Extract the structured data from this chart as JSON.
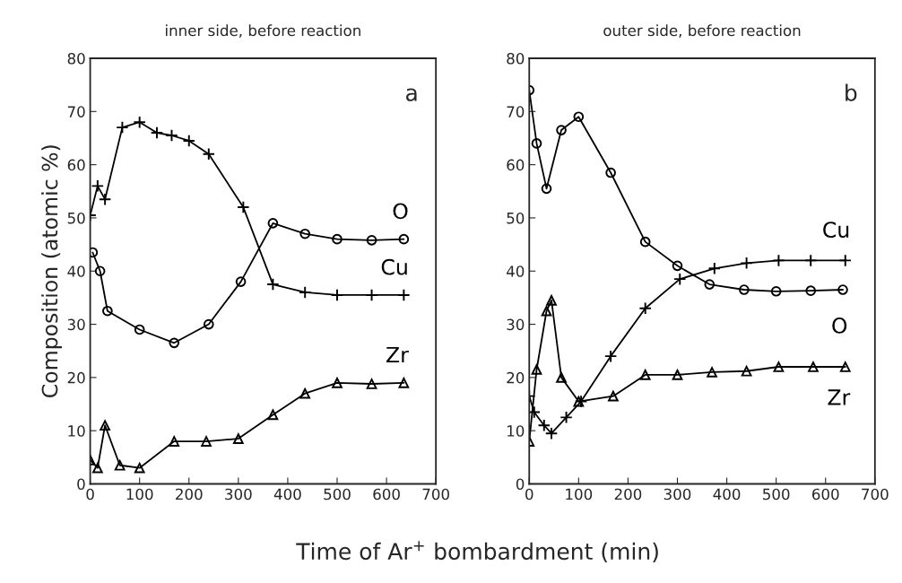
{
  "chart_data": [
    {
      "type": "line",
      "title": "inner side, before reaction",
      "xlabel": "Time of Ar$^{+}$ bombardment (min)",
      "ylabel": "Composition (atomic %)",
      "annotations": [
        "a"
      ],
      "xlim": [
        0,
        700
      ],
      "ylim": [
        0,
        80
      ],
      "xticks": [
        0,
        100,
        200,
        300,
        400,
        500,
        600,
        700
      ],
      "yticks": [
        0,
        10,
        20,
        30,
        40,
        50,
        60,
        70,
        80
      ],
      "grid": false,
      "legend": false,
      "series": [
        {
          "name": "O",
          "color": "#000000",
          "marker": "circle",
          "x": [
            5,
            20,
            35,
            100,
            170,
            240,
            305,
            370,
            435,
            500,
            570,
            635
          ],
          "values": [
            43.5,
            40,
            32.5,
            29,
            26.5,
            30,
            38,
            49,
            47,
            46,
            45.8,
            46
          ]
        },
        {
          "name": "Cu",
          "color": "#000000",
          "marker": "cross",
          "x": [
            0,
            15,
            30,
            65,
            100,
            135,
            165,
            200,
            240,
            310,
            370,
            435,
            500,
            570,
            635
          ],
          "values": [
            50.5,
            56,
            53.5,
            67,
            68,
            66,
            65.5,
            64.5,
            62,
            52,
            37.5,
            36,
            35.5,
            35.5,
            35.5
          ]
        },
        {
          "name": "Zr",
          "color": "#000000",
          "marker": "triangle",
          "x": [
            0,
            15,
            30,
            60,
            100,
            170,
            235,
            300,
            370,
            435,
            500,
            570,
            635
          ],
          "values": [
            4.5,
            3,
            11,
            3.5,
            3,
            8,
            8,
            8.5,
            13,
            17,
            19,
            18.8,
            19
          ]
        }
      ]
    },
    {
      "type": "line",
      "title": "outer side, before reaction",
      "annotations": [
        "b"
      ],
      "xlim": [
        0,
        700
      ],
      "ylim": [
        0,
        80
      ],
      "xticks": [
        0,
        100,
        200,
        300,
        400,
        500,
        600,
        700
      ],
      "yticks": [
        0,
        10,
        20,
        30,
        40,
        50,
        60,
        70,
        80
      ],
      "grid": false,
      "legend": false,
      "series": [
        {
          "name": "O",
          "color": "#000000",
          "marker": "circle",
          "x": [
            0,
            15,
            35,
            65,
            100,
            165,
            235,
            300,
            365,
            435,
            500,
            570,
            635
          ],
          "values": [
            74,
            64,
            55.5,
            66.5,
            69,
            58.5,
            45.5,
            41,
            37.5,
            36.5,
            36.2,
            36.3,
            36.5
          ]
        },
        {
          "name": "Cu",
          "color": "#000000",
          "marker": "cross",
          "x": [
            0,
            10,
            30,
            45,
            75,
            105,
            165,
            235,
            305,
            375,
            440,
            505,
            570,
            640
          ],
          "values": [
            16.5,
            13.5,
            11,
            9.5,
            12.5,
            15.5,
            24,
            33,
            38.5,
            40.5,
            41.5,
            42,
            42,
            42
          ]
        },
        {
          "name": "Zr",
          "color": "#000000",
          "marker": "triangle",
          "x": [
            0,
            15,
            35,
            45,
            65,
            100,
            170,
            235,
            300,
            370,
            440,
            505,
            575,
            640
          ],
          "values": [
            8,
            21.5,
            32.5,
            34.5,
            20,
            15.5,
            16.5,
            20.5,
            20.5,
            21,
            21.2,
            22,
            22,
            22
          ]
        }
      ]
    }
  ]
}
